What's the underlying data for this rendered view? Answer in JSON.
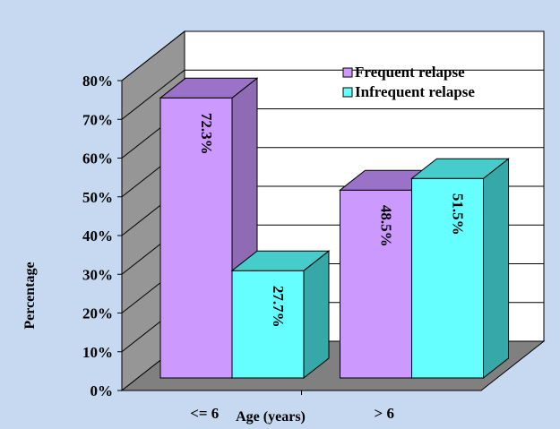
{
  "chart_data": {
    "type": "bar",
    "title": "",
    "xlabel": "Age (years)",
    "ylabel": "Percentage",
    "categories": [
      "<= 6",
      "> 6"
    ],
    "series": [
      {
        "name": "Frequent relapse",
        "values": [
          72.3,
          48.5
        ],
        "labels": [
          "72.3%",
          "48.5%"
        ],
        "color": "#cc99ff",
        "side_color": "#8e6bb2",
        "top_color": "#9a73c8"
      },
      {
        "name": "Infrequent relapse",
        "values": [
          27.7,
          51.5
        ],
        "labels": [
          "27.7%",
          "51.5%"
        ],
        "color": "#66ffff",
        "side_color": "#36a8a8",
        "top_color": "#47cccc"
      }
    ],
    "ylim": [
      0,
      80
    ],
    "yticks": [
      0,
      10,
      20,
      30,
      40,
      50,
      60,
      70,
      80
    ],
    "ytick_labels": [
      "0%",
      "10%",
      "20%",
      "30%",
      "40%",
      "50%",
      "60%",
      "70%",
      "80%"
    ],
    "grid": true,
    "legend_position": "top-right",
    "background_color": "#c6d9f0",
    "plot_back_color": "#ffffff",
    "wall_color": "#969696",
    "floor_color": "#808080"
  }
}
